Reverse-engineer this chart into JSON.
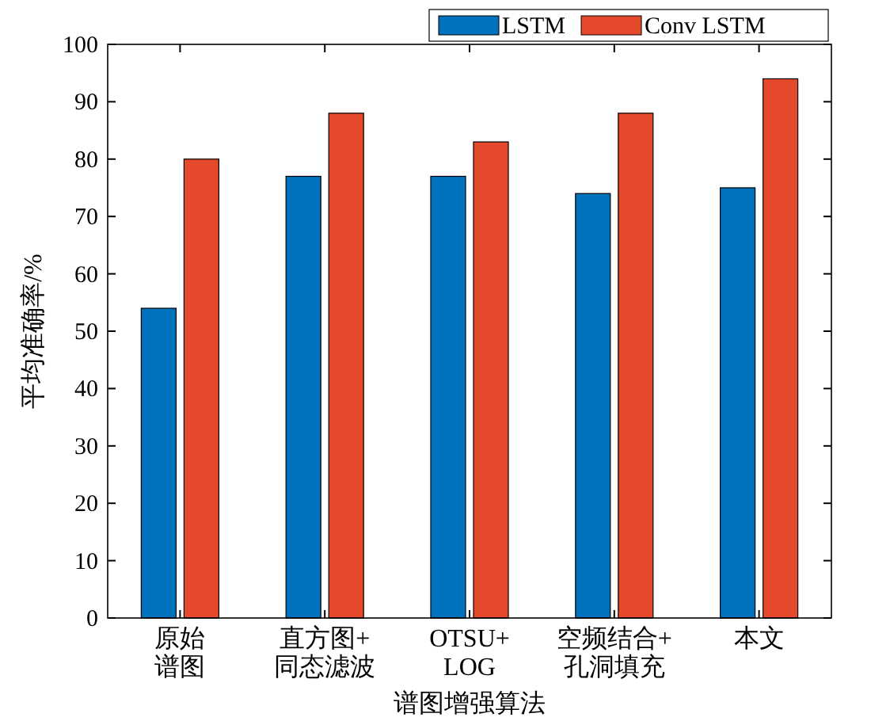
{
  "chart_data": {
    "type": "bar",
    "xlabel": "谱图增强算法",
    "ylabel": "平均准确率/%",
    "categories": [
      "原始谱图",
      "直方图+同态滤波",
      "OTSU+ LOG",
      "空频结合+孔洞填充",
      "本文"
    ],
    "series": [
      {
        "name": "LSTM",
        "color": "#0072bd",
        "values": [
          54,
          77,
          77,
          74,
          75
        ]
      },
      {
        "name": "Conv LSTM",
        "color": "#e5492b",
        "values": [
          80,
          88,
          83,
          88,
          94
        ]
      }
    ],
    "ylim": [
      0,
      100
    ],
    "yticks": [
      0,
      10,
      20,
      30,
      40,
      50,
      60,
      70,
      80,
      90,
      100
    ],
    "grid": false,
    "legend": "top right"
  }
}
